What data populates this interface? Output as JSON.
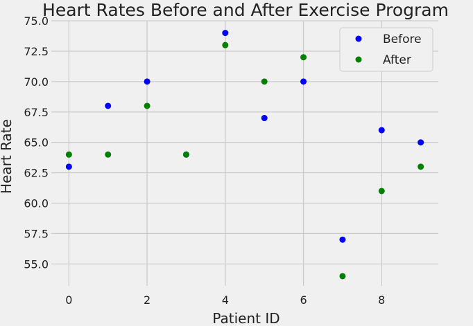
{
  "chart_data": {
    "type": "scatter",
    "title": "Heart Rates Before and After Exercise Program",
    "xlabel": "Patient ID",
    "ylabel": "Heart Rate",
    "xlim": [
      -0.45,
      9.45
    ],
    "ylim": [
      53.2,
      75.0
    ],
    "xticks": [
      0,
      2,
      4,
      6,
      8
    ],
    "yticks": [
      55.0,
      57.5,
      60.0,
      62.5,
      65.0,
      67.5,
      70.0,
      72.5,
      75.0
    ],
    "xtick_labels": [
      "0",
      "2",
      "4",
      "6",
      "8"
    ],
    "ytick_labels": [
      "55.0",
      "57.5",
      "60.0",
      "62.5",
      "65.0",
      "67.5",
      "70.0",
      "72.5",
      "75.0"
    ],
    "grid": true,
    "legend_position": "top-right",
    "x": [
      0,
      1,
      2,
      3,
      4,
      5,
      6,
      7,
      8,
      9
    ],
    "series": [
      {
        "name": "Before",
        "color": "#0000ff",
        "values": [
          63,
          68,
          70,
          64,
          74,
          67,
          70,
          57,
          66,
          65
        ]
      },
      {
        "name": "After",
        "color": "#008000",
        "values": [
          64,
          64,
          68,
          64,
          73,
          70,
          72,
          54,
          61,
          63
        ]
      }
    ]
  }
}
